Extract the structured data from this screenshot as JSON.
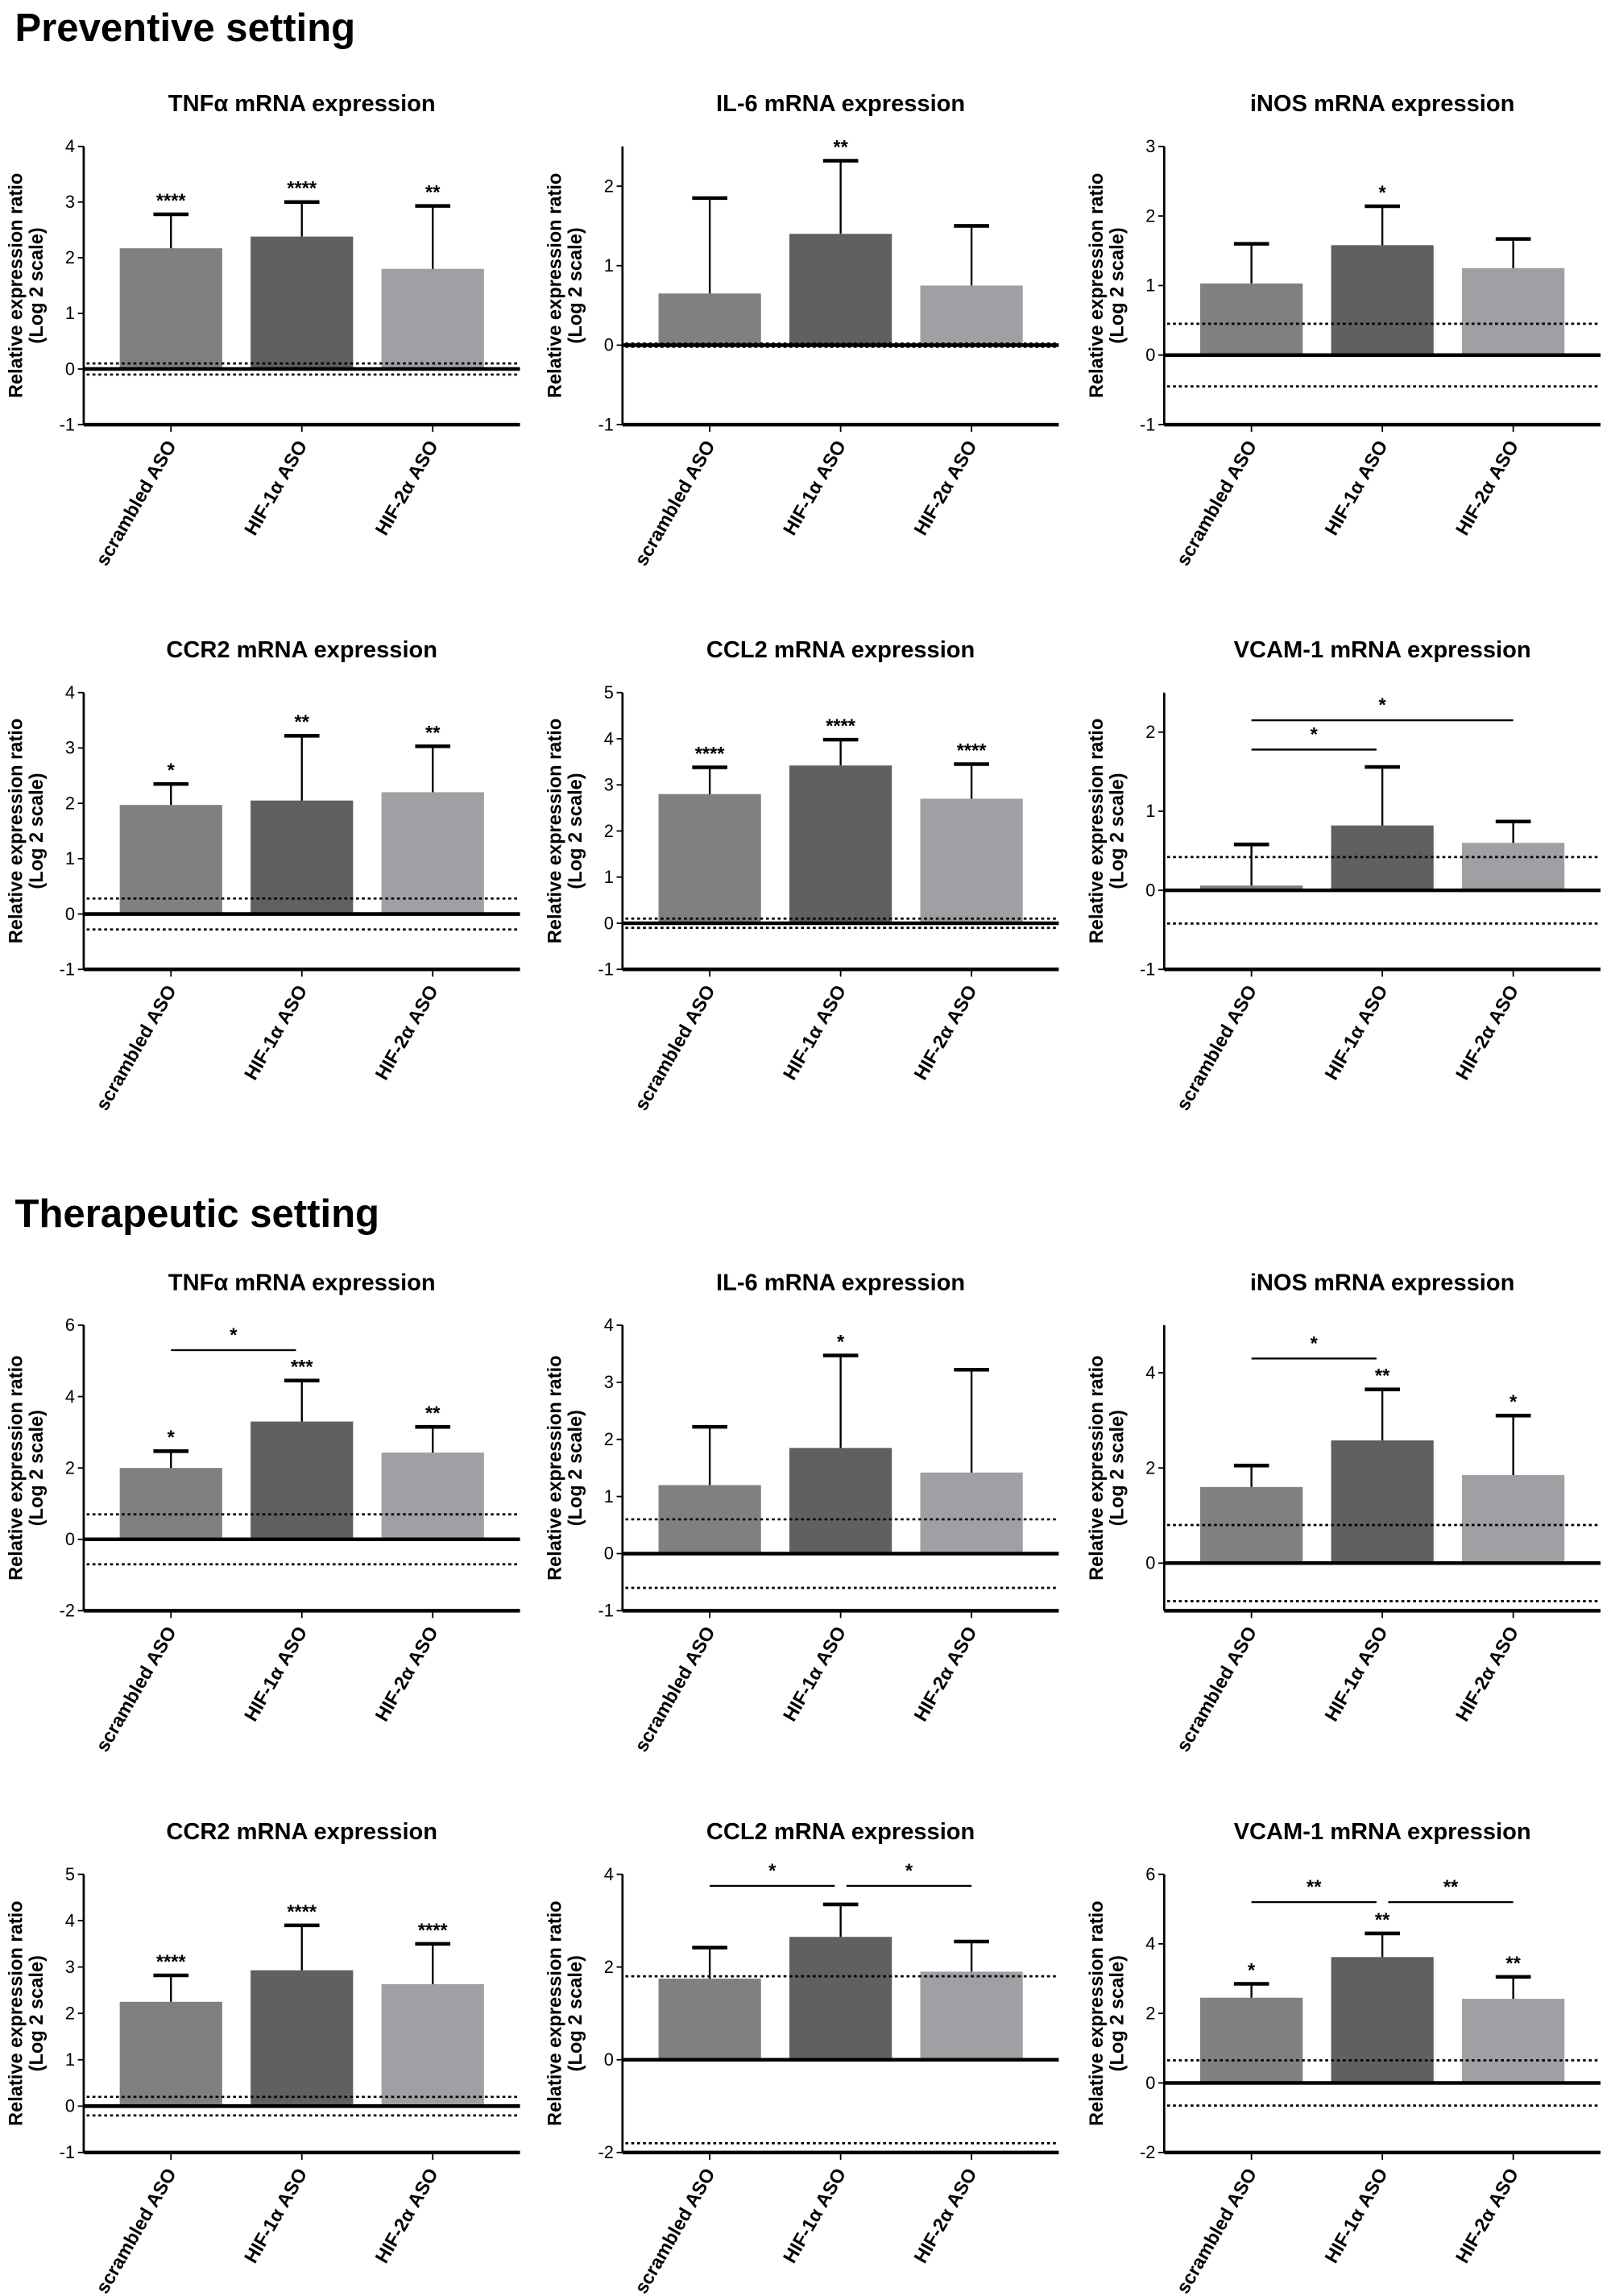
{
  "sections": [
    "Preventive setting",
    "Therapeutic setting"
  ],
  "colors": {
    "scrambled": "#808080",
    "hif1a": "#606060",
    "hif2a": "#a0a0a4"
  },
  "chart_data": [
    {
      "type": "bar",
      "section": "Preventive setting",
      "title": "TNFα mRNA expression",
      "ylabel": "Relative expression ratio",
      "ylabel2": "(Log 2 scale)",
      "categories": [
        "scrambled ASO",
        "HIF-1α ASO",
        "HIF-2α ASO"
      ],
      "ylim": [
        -1,
        4
      ],
      "yticks": [
        -1,
        0,
        1,
        2,
        3,
        4
      ],
      "values": [
        2.17,
        2.38,
        1.8
      ],
      "error_upper": [
        2.78,
        3.0,
        2.93
      ],
      "stars": [
        "****",
        "****",
        "**"
      ],
      "brackets": [],
      "dotted_lines": [
        0.1,
        -0.1
      ]
    },
    {
      "type": "bar",
      "section": "Preventive setting",
      "title": "IL-6 mRNA expression",
      "ylabel": "Relative expression ratio",
      "ylabel2": "(Log 2 scale)",
      "categories": [
        "scrambled ASO",
        "HIF-1α ASO",
        "HIF-2α ASO"
      ],
      "ylim": [
        -1,
        2.5
      ],
      "yticks": [
        -1,
        0,
        1,
        2
      ],
      "values": [
        0.65,
        1.4,
        0.75
      ],
      "error_upper": [
        1.85,
        2.32,
        1.5
      ],
      "stars": [
        "",
        "**",
        ""
      ],
      "brackets": [],
      "dotted_lines": [
        0.02,
        -0.02
      ]
    },
    {
      "type": "bar",
      "section": "Preventive setting",
      "title": "iNOS mRNA expression",
      "ylabel": "Relative expression ratio",
      "ylabel2": "(Log 2 scale)",
      "categories": [
        "scrambled ASO",
        "HIF-1α ASO",
        "HIF-2α ASO"
      ],
      "ylim": [
        -1,
        3
      ],
      "yticks": [
        -1,
        0,
        1,
        2,
        3
      ],
      "values": [
        1.03,
        1.58,
        1.25
      ],
      "error_upper": [
        1.6,
        2.14,
        1.67
      ],
      "stars": [
        "",
        "*",
        ""
      ],
      "brackets": [],
      "dotted_lines": [
        0.45,
        -0.45
      ]
    },
    {
      "type": "bar",
      "section": "Preventive setting",
      "title": "CCR2 mRNA expression",
      "ylabel": "Relative expression ratio",
      "ylabel2": "(Log 2 scale)",
      "categories": [
        "scrambled ASO",
        "HIF-1α ASO",
        "HIF-2α ASO"
      ],
      "ylim": [
        -1,
        4
      ],
      "yticks": [
        -1,
        0,
        1,
        2,
        3,
        4
      ],
      "values": [
        1.97,
        2.05,
        2.2
      ],
      "error_upper": [
        2.35,
        3.22,
        3.03
      ],
      "stars": [
        "*",
        "**",
        "**"
      ],
      "brackets": [],
      "dotted_lines": [
        0.28,
        -0.28
      ]
    },
    {
      "type": "bar",
      "section": "Preventive setting",
      "title": "CCL2 mRNA expression",
      "ylabel": "Relative expression ratio",
      "ylabel2": "(Log 2 scale)",
      "categories": [
        "scrambled ASO",
        "HIF-1α ASO",
        "HIF-2α ASO"
      ],
      "ylim": [
        -1,
        5
      ],
      "yticks": [
        -1,
        0,
        1,
        2,
        3,
        4,
        5
      ],
      "values": [
        2.8,
        3.42,
        2.7
      ],
      "error_upper": [
        3.38,
        3.98,
        3.45
      ],
      "stars": [
        "****",
        "****",
        "****"
      ],
      "brackets": [],
      "dotted_lines": [
        0.1,
        -0.1
      ]
    },
    {
      "type": "bar",
      "section": "Preventive setting",
      "title": "VCAM-1 mRNA expression",
      "ylabel": "Relative expression ratio",
      "ylabel2": "(Log 2 scale)",
      "categories": [
        "scrambled ASO",
        "HIF-1α ASO",
        "HIF-2α ASO"
      ],
      "ylim": [
        -1,
        2.5
      ],
      "yticks": [
        -1,
        0,
        1,
        2
      ],
      "values": [
        0.06,
        0.82,
        0.6
      ],
      "error_upper": [
        0.58,
        1.56,
        0.87
      ],
      "stars": [
        "",
        "",
        ""
      ],
      "brackets": [
        {
          "from": 0,
          "to": 1,
          "y": 1.78,
          "label": "*"
        },
        {
          "from": 0,
          "to": 2,
          "y": 2.15,
          "label": "*"
        }
      ],
      "dotted_lines": [
        0.42,
        -0.42
      ]
    },
    {
      "type": "bar",
      "section": "Therapeutic setting",
      "title": "TNFα mRNA expression",
      "ylabel": "Relative expression ratio",
      "ylabel2": "(Log 2 scale)",
      "categories": [
        "scrambled ASO",
        "HIF-1α ASO",
        "HIF-2α ASO"
      ],
      "ylim": [
        -2,
        6
      ],
      "yticks": [
        -2,
        0,
        2,
        4,
        6
      ],
      "values": [
        2.0,
        3.3,
        2.43
      ],
      "error_upper": [
        2.47,
        4.45,
        3.15
      ],
      "stars": [
        "*",
        "***",
        "**"
      ],
      "brackets": [
        {
          "from": 0,
          "to": 1,
          "y": 5.3,
          "label": "*"
        }
      ],
      "dotted_lines": [
        0.7,
        -0.7
      ]
    },
    {
      "type": "bar",
      "section": "Therapeutic setting",
      "title": "IL-6 mRNA expression",
      "ylabel": "Relative expression ratio",
      "ylabel2": "(Log 2 scale)",
      "categories": [
        "scrambled ASO",
        "HIF-1α ASO",
        "HIF-2α ASO"
      ],
      "ylim": [
        -1,
        4
      ],
      "yticks": [
        -1,
        0,
        1,
        2,
        3,
        4
      ],
      "values": [
        1.2,
        1.85,
        1.42
      ],
      "error_upper": [
        2.22,
        3.47,
        3.22
      ],
      "stars": [
        "",
        "*",
        ""
      ],
      "brackets": [],
      "dotted_lines": [
        0.6,
        -0.6
      ]
    },
    {
      "type": "bar",
      "section": "Therapeutic setting",
      "title": "iNOS mRNA expression",
      "ylabel": "Relative expression ratio",
      "ylabel2": "(Log 2 scale)",
      "categories": [
        "scrambled ASO",
        "HIF-1α ASO",
        "HIF-2α ASO"
      ],
      "ylim": [
        -1,
        5
      ],
      "yticks": [
        0,
        2,
        4
      ],
      "values": [
        1.6,
        2.58,
        1.85
      ],
      "error_upper": [
        2.05,
        3.65,
        3.1
      ],
      "stars": [
        "",
        "**",
        "*"
      ],
      "brackets": [
        {
          "from": 0,
          "to": 1,
          "y": 4.3,
          "label": "*"
        }
      ],
      "dotted_lines": [
        0.8,
        -0.8
      ]
    },
    {
      "type": "bar",
      "section": "Therapeutic setting",
      "title": "CCR2 mRNA expression",
      "ylabel": "Relative expression ratio",
      "ylabel2": "(Log 2 scale)",
      "categories": [
        "scrambled ASO",
        "HIF-1α ASO",
        "HIF-2α ASO"
      ],
      "ylim": [
        -1,
        5
      ],
      "yticks": [
        -1,
        0,
        1,
        2,
        3,
        4,
        5
      ],
      "values": [
        2.25,
        2.93,
        2.63
      ],
      "error_upper": [
        2.82,
        3.9,
        3.5
      ],
      "stars": [
        "****",
        "****",
        "****"
      ],
      "brackets": [],
      "dotted_lines": [
        0.2,
        -0.2
      ]
    },
    {
      "type": "bar",
      "section": "Therapeutic setting",
      "title": "CCL2 mRNA expression",
      "ylabel": "Relative expression ratio",
      "ylabel2": "(Log 2 scale)",
      "categories": [
        "scrambled ASO",
        "HIF-1α ASO",
        "HIF-2α ASO"
      ],
      "ylim": [
        -2,
        4
      ],
      "yticks": [
        -2,
        0,
        2,
        4
      ],
      "values": [
        1.75,
        2.65,
        1.9
      ],
      "error_upper": [
        2.42,
        3.35,
        2.55
      ],
      "stars": [
        "",
        "",
        ""
      ],
      "brackets": [
        {
          "from": 0,
          "to": 1,
          "y": 3.75,
          "label": "*"
        },
        {
          "from": 1,
          "to": 2,
          "y": 3.75,
          "label": "*"
        }
      ],
      "dotted_lines": [
        1.8,
        -1.8
      ]
    },
    {
      "type": "bar",
      "section": "Therapeutic setting",
      "title": "VCAM-1 mRNA expression",
      "ylabel": "Relative expression ratio",
      "ylabel2": "(Log 2 scale)",
      "categories": [
        "scrambled ASO",
        "HIF-1α ASO",
        "HIF-2α ASO"
      ],
      "ylim": [
        -2,
        6
      ],
      "yticks": [
        -2,
        0,
        2,
        4,
        6
      ],
      "values": [
        2.45,
        3.62,
        2.42
      ],
      "error_upper": [
        2.85,
        4.3,
        3.05
      ],
      "stars": [
        "*",
        "**",
        "**"
      ],
      "brackets": [
        {
          "from": 0,
          "to": 1,
          "y": 5.2,
          "label": "**"
        },
        {
          "from": 1,
          "to": 2,
          "y": 5.2,
          "label": "**"
        }
      ],
      "dotted_lines": [
        0.65,
        -0.65
      ]
    }
  ]
}
